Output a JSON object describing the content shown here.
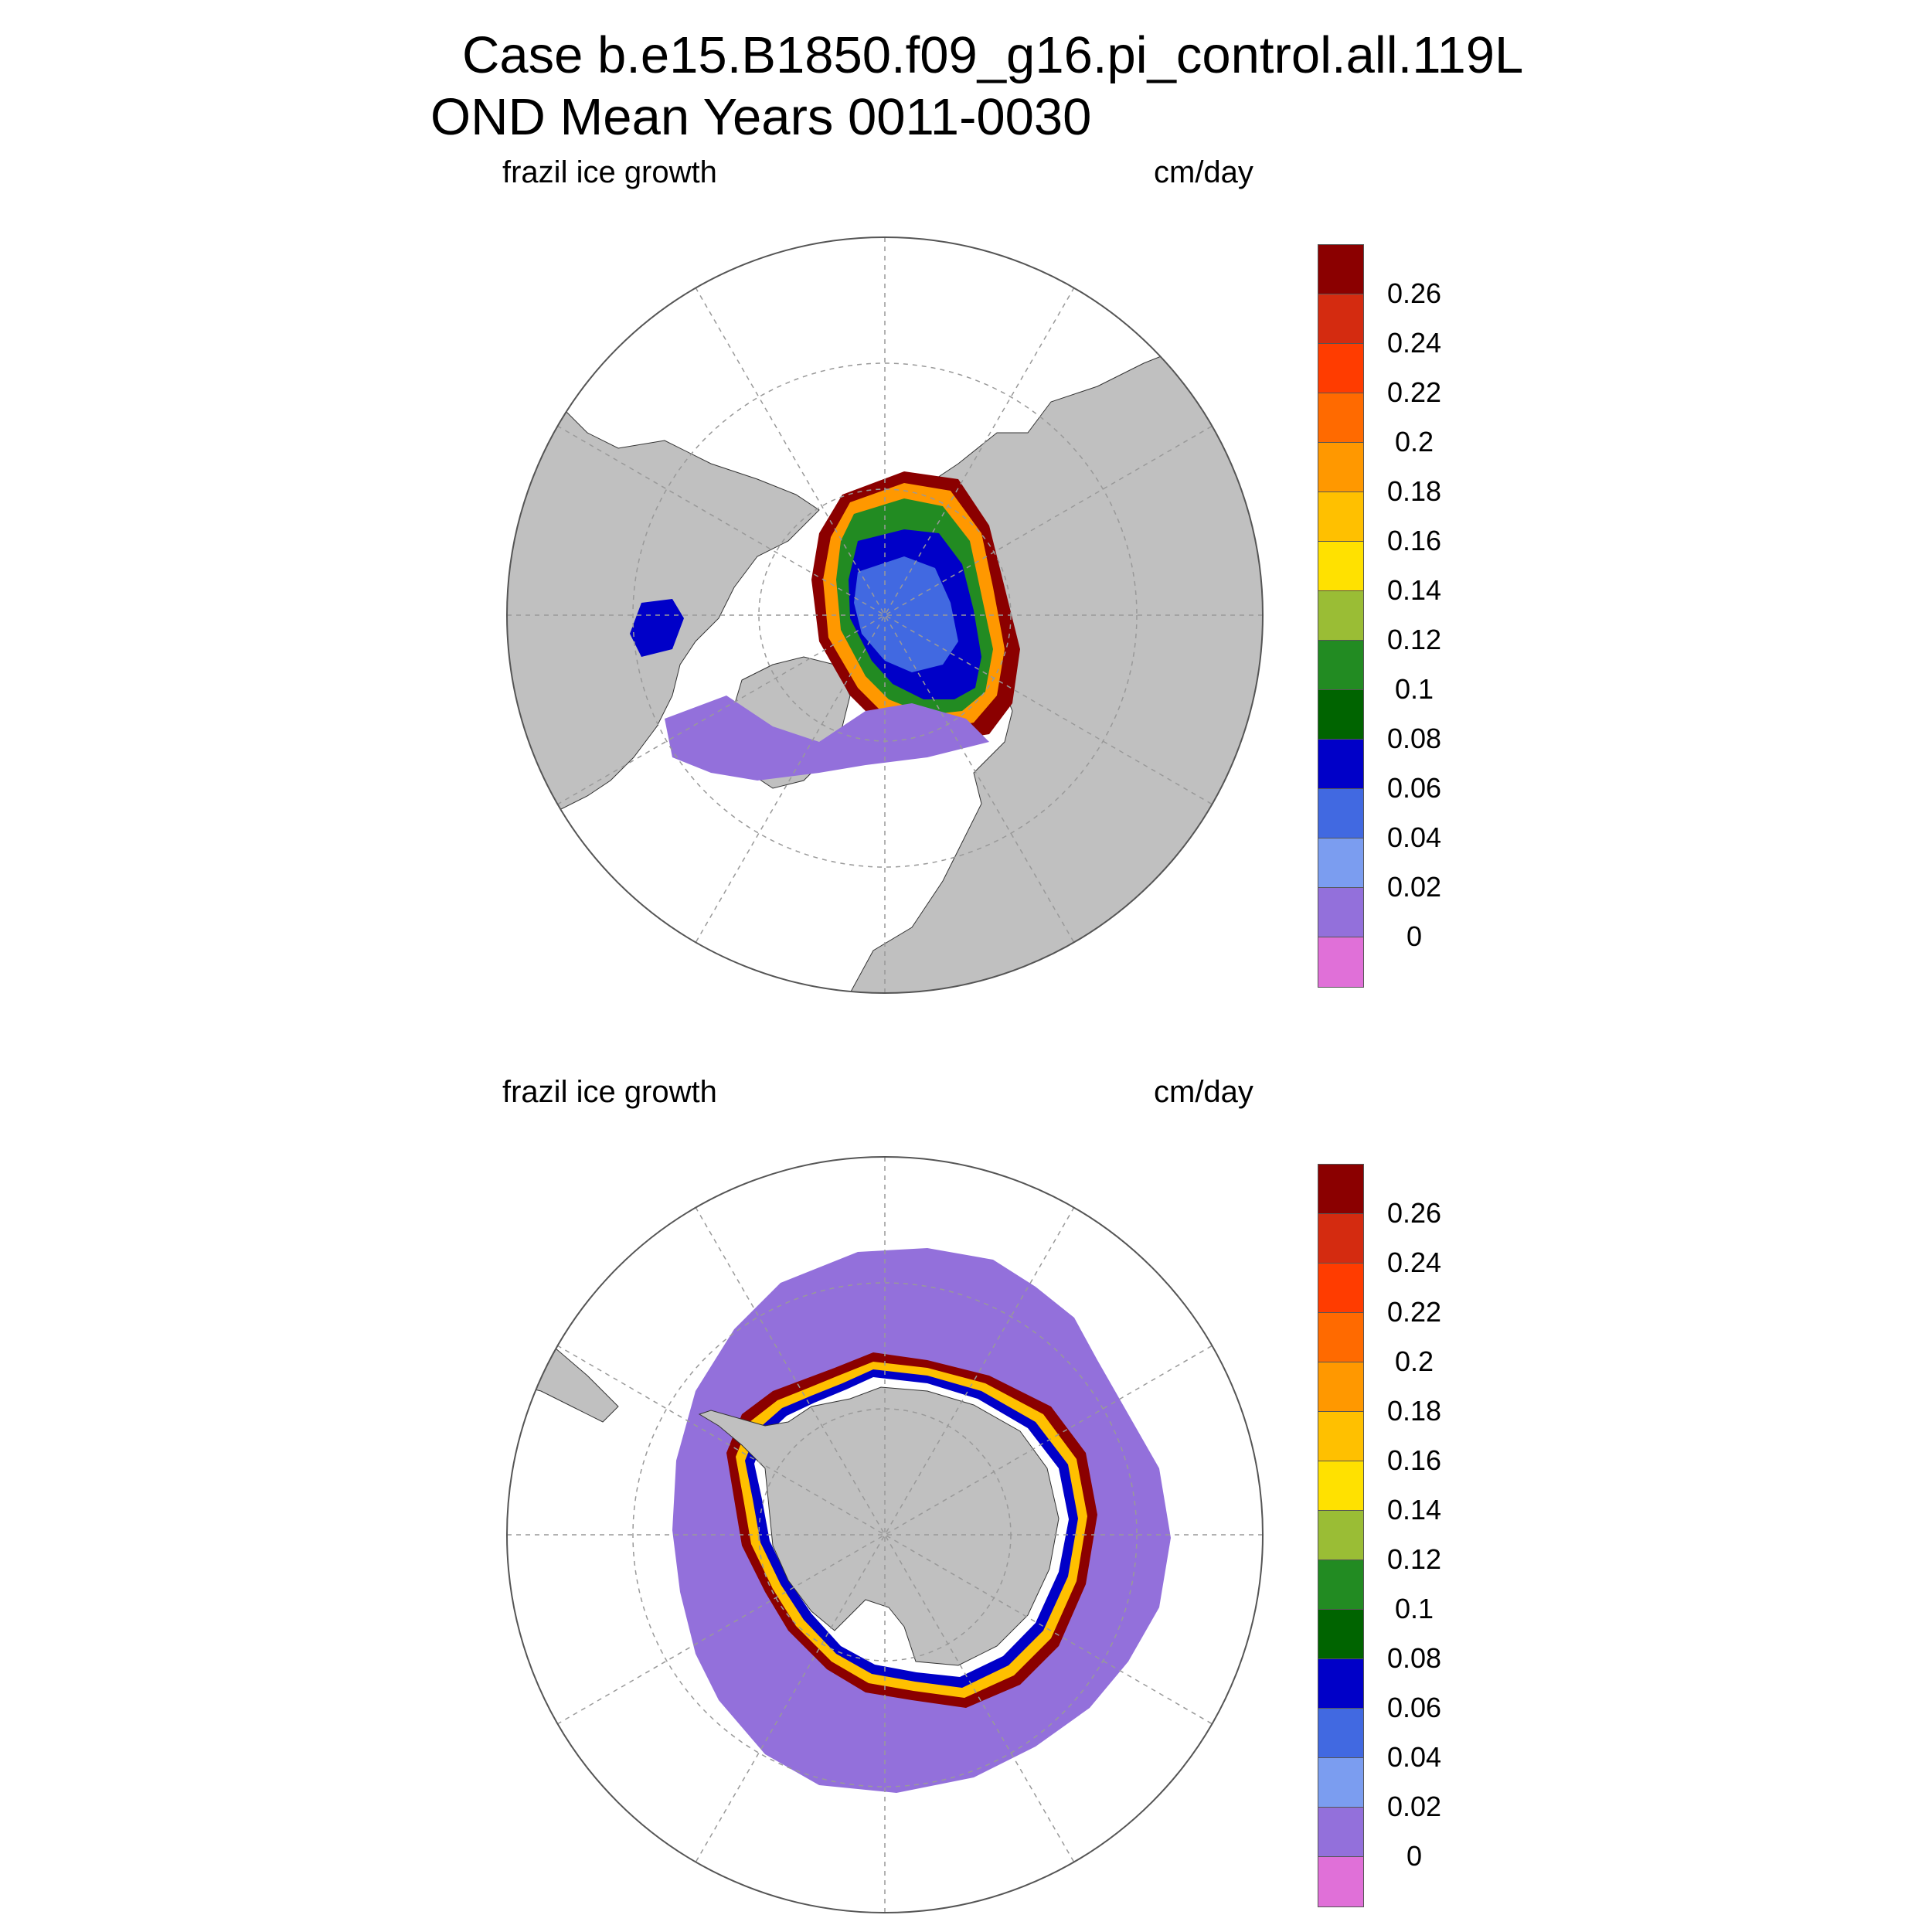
{
  "title": {
    "line1": "Case b.e15.B1850.f09_g16.pi_control.all.119L",
    "line2": "OND Mean   Years 0011-0030"
  },
  "panels": [
    {
      "name": "north-polar-map",
      "hemisphere": "north",
      "left_label": "frazil ice growth",
      "right_label": "cm/day"
    },
    {
      "name": "south-polar-map",
      "hemisphere": "south",
      "left_label": "frazil ice growth",
      "right_label": "cm/day"
    }
  ],
  "colorbar": {
    "colors_top_to_bottom": [
      "#8B0000",
      "#D42B10",
      "#FF3C00",
      "#FF6A00",
      "#FF9800",
      "#FFC000",
      "#FFE100",
      "#9ABD35",
      "#228B22",
      "#006400",
      "#0000C8",
      "#4169E1",
      "#7B9DF0",
      "#9370DB",
      "#E070D8"
    ],
    "labels_top_to_bottom": [
      "0.26",
      "0.24",
      "0.22",
      "0.2",
      "0.18",
      "0.16",
      "0.14",
      "0.12",
      "0.1",
      "0.08",
      "0.06",
      "0.04",
      "0.02",
      "0"
    ]
  },
  "map_colors": {
    "land": "#C0C0C0",
    "ocean": "#FFFFFF",
    "grid": "#999999",
    "frame": "#555555"
  }
}
